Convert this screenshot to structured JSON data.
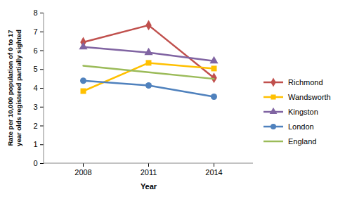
{
  "chart_data": {
    "type": "line",
    "x_label": "Year",
    "y_label": "Rate per 10,000 population of 0 to 17 year olds registered partially sighted",
    "categories": [
      2008,
      2011,
      2014
    ],
    "series": [
      {
        "name": "Richmond",
        "color": "#c0504d",
        "marker": "diamond",
        "values": [
          6.45,
          7.35,
          4.55
        ]
      },
      {
        "name": "Wandsworth",
        "color": "#ffc000",
        "marker": "square",
        "values": [
          3.85,
          5.35,
          5.05
        ]
      },
      {
        "name": "Kingston",
        "color": "#8064a2",
        "marker": "triangle",
        "values": [
          6.2,
          5.9,
          5.45
        ]
      },
      {
        "name": "London",
        "color": "#4f81bd",
        "marker": "circle",
        "values": [
          4.4,
          4.15,
          3.55
        ]
      },
      {
        "name": "England",
        "color": "#9bbb59",
        "marker": "none",
        "values": [
          5.2,
          4.85,
          4.5
        ]
      }
    ],
    "ylim": [
      0,
      8
    ],
    "yticks": [
      0,
      1,
      2,
      3,
      4,
      5,
      6,
      7,
      8
    ],
    "grid": false,
    "legend": "right"
  }
}
